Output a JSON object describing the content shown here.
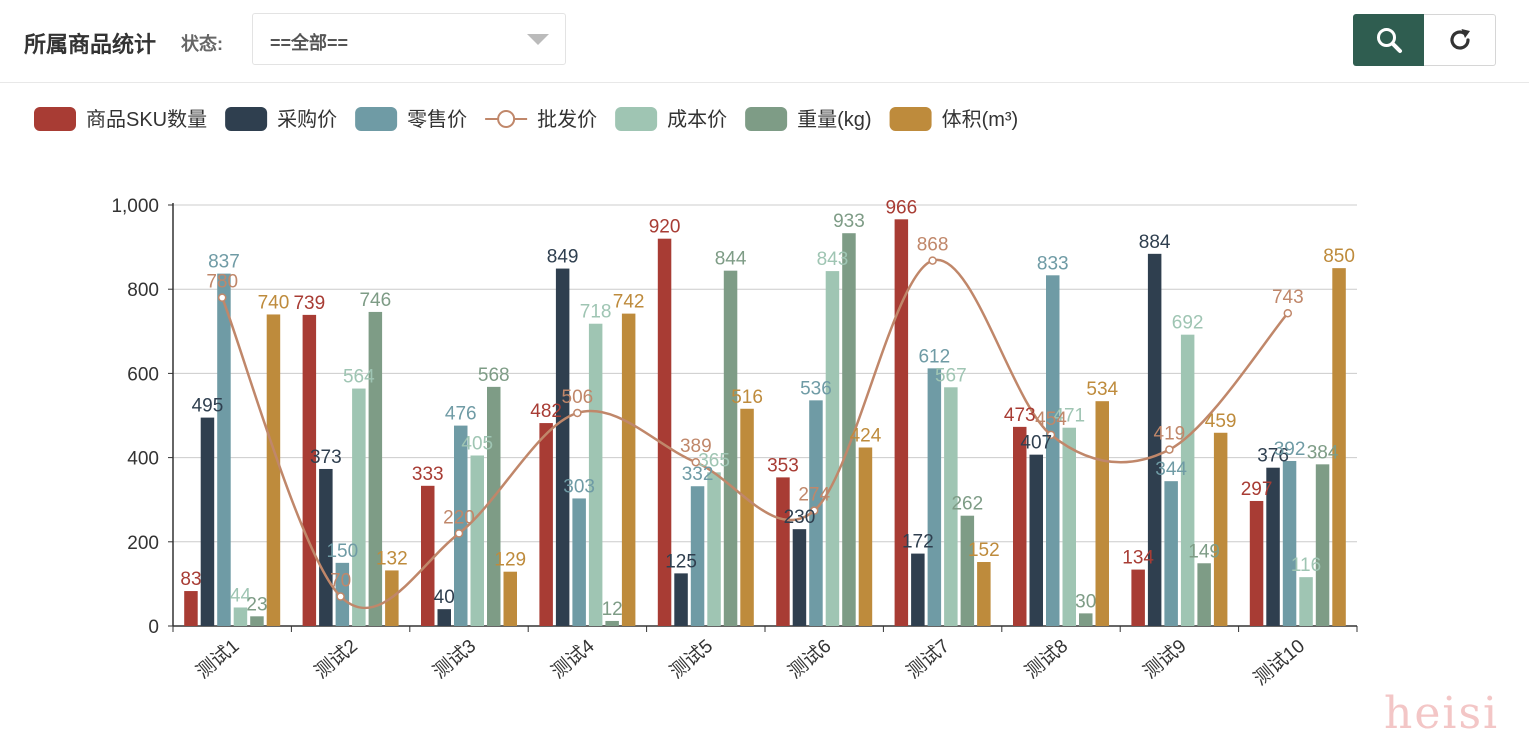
{
  "toolbar": {
    "title": "所属商品统计",
    "status_label": "状态:",
    "status_value": "==全部==",
    "search_icon": "search-icon",
    "refresh_icon": "refresh-icon"
  },
  "watermark": "heisi",
  "chart_data": {
    "type": "bar",
    "categories": [
      "测试1",
      "测试2",
      "测试3",
      "测试4",
      "测试5",
      "测试6",
      "测试7",
      "测试8",
      "测试9",
      "测试10"
    ],
    "ylim": [
      0,
      1000
    ],
    "yticks": [
      0,
      200,
      400,
      600,
      800,
      1000
    ],
    "ytick_labels": [
      "0",
      "200",
      "400",
      "600",
      "800",
      "1,000"
    ],
    "grid": true,
    "legend_position": "top-left",
    "series": [
      {
        "name": "商品SKU数量",
        "type": "bar",
        "color": "#a83c34",
        "values": [
          83,
          739,
          333,
          482,
          920,
          353,
          966,
          473,
          134,
          297
        ]
      },
      {
        "name": "采购价",
        "type": "bar",
        "color": "#2f3f4f",
        "values": [
          495,
          373,
          40,
          849,
          125,
          230,
          172,
          407,
          884,
          376
        ]
      },
      {
        "name": "零售价",
        "type": "bar",
        "color": "#6f9ba5",
        "values": [
          837,
          150,
          476,
          303,
          332,
          536,
          612,
          833,
          344,
          392
        ]
      },
      {
        "name": "批发价",
        "type": "line",
        "color": "#c0876a",
        "values": [
          780,
          70,
          220,
          506,
          389,
          274,
          868,
          454,
          419,
          743
        ]
      },
      {
        "name": "成本价",
        "type": "bar",
        "color": "#9fc5b3",
        "values": [
          44,
          564,
          405,
          718,
          365,
          843,
          567,
          471,
          692,
          116
        ]
      },
      {
        "name": "重量(kg)",
        "type": "bar",
        "color": "#7e9c86",
        "values": [
          23,
          746,
          568,
          12,
          844,
          933,
          262,
          30,
          149,
          384
        ]
      },
      {
        "name": "体积(m³)",
        "type": "bar",
        "color": "#be8b3c",
        "values": [
          740,
          132,
          129,
          742,
          516,
          424,
          152,
          534,
          459,
          850
        ]
      }
    ]
  }
}
